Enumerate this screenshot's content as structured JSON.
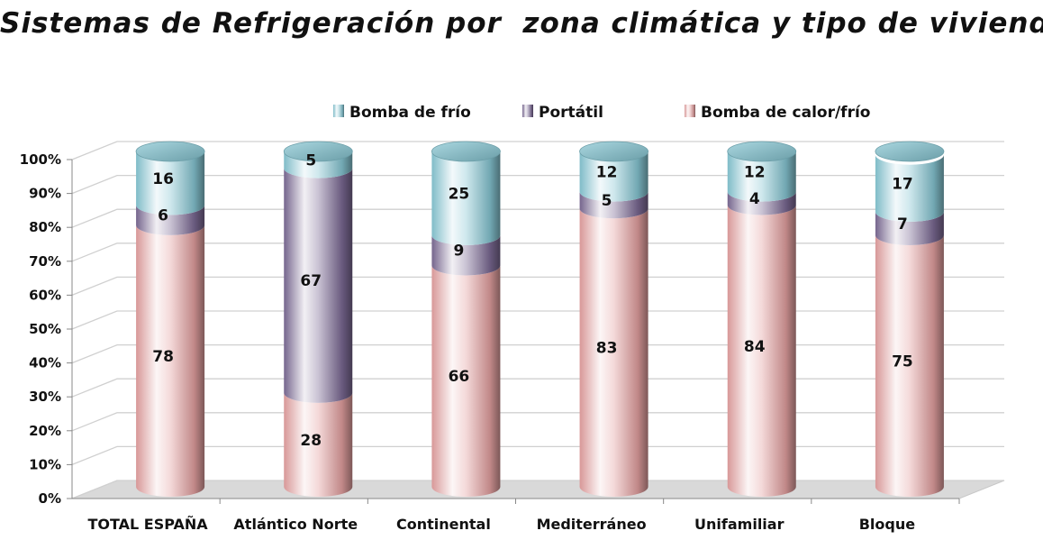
{
  "chart_data": {
    "type": "bar",
    "stacked": true,
    "three_d": "cylinder",
    "title": "Sistemas de Refrigeración por  zona climática y tipo de vivienda",
    "xlabel": "",
    "ylabel": "",
    "ylim": [
      0,
      100
    ],
    "y_ticks": [
      "0%",
      "10%",
      "20%",
      "30%",
      "40%",
      "50%",
      "60%",
      "70%",
      "80%",
      "90%",
      "100%"
    ],
    "grid": true,
    "legend_position": "top",
    "categories": [
      "TOTAL ESPAÑA",
      "Atlántico Norte",
      "Continental",
      "Mediterráneo",
      "Unifamiliar",
      "Bloque"
    ],
    "series": [
      {
        "name": "Bomba de calor/frío",
        "color": "#e3a0a0",
        "values": [
          78,
          28,
          66,
          83,
          84,
          75
        ]
      },
      {
        "name": "Portátil",
        "color": "#7b6a94",
        "values": [
          6,
          67,
          9,
          5,
          4,
          7
        ]
      },
      {
        "name": "Bomba de frío",
        "color": "#86c6d2",
        "values": [
          16,
          5,
          25,
          12,
          12,
          17
        ]
      }
    ],
    "legend_order": [
      "Bomba de frío",
      "Portátil",
      "Bomba de calor/frío"
    ]
  }
}
